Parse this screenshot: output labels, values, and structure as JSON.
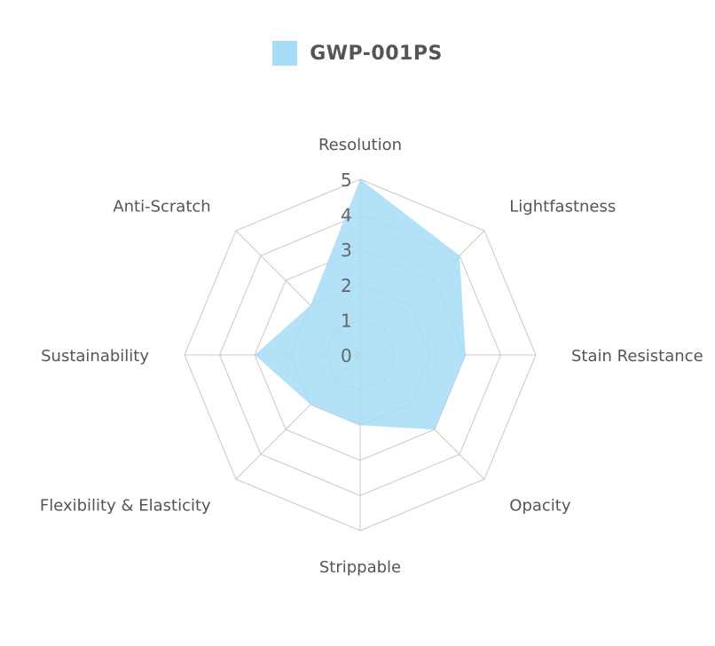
{
  "chart_data": {
    "type": "radar",
    "axes": [
      "Resolution",
      "Lightfastness",
      "Stain Resistance",
      "Opacity",
      "Strippable",
      "Flexibility & Elasticity",
      "Sustainability",
      "Anti-Scratch"
    ],
    "series": [
      {
        "name": "GWP-001PS",
        "values": [
          5,
          4,
          3,
          3,
          2,
          2,
          3,
          2
        ]
      }
    ],
    "scale": {
      "min": 0,
      "max": 5,
      "ticks": [
        "0",
        "1",
        "2",
        "3",
        "4",
        "5"
      ]
    },
    "legend_position": "top-center"
  },
  "colors": {
    "series_fill": "#a6dcf7",
    "grid": "#c8c8c8",
    "axis_label": "#555555",
    "tick_label": "#666666"
  }
}
